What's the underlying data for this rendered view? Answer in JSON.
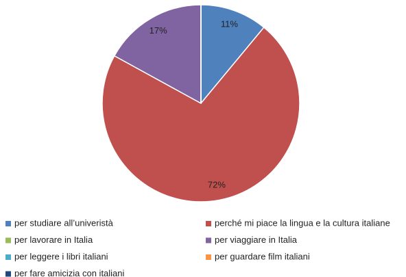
{
  "chart_data": {
    "type": "pie",
    "categories": [
      "per studiare all’univeristà",
      "perché mi piace la lingua e la cultura italiane",
      "per lavorare in Italia",
      "per viaggiare in Italia",
      "per leggere i libri italiani",
      "per guardare film italiani",
      "per fare amicizia con italiani"
    ],
    "values": [
      11,
      72,
      0,
      17,
      0,
      0,
      0
    ],
    "value_labels": [
      "11%",
      "72%",
      null,
      "17%",
      null,
      null,
      null
    ],
    "colors": [
      "#4f81bd",
      "#c0504d",
      "#9bbb59",
      "#8064a2",
      "#4bacc6",
      "#f79646",
      "#1f497d"
    ],
    "legend": "bottom"
  }
}
